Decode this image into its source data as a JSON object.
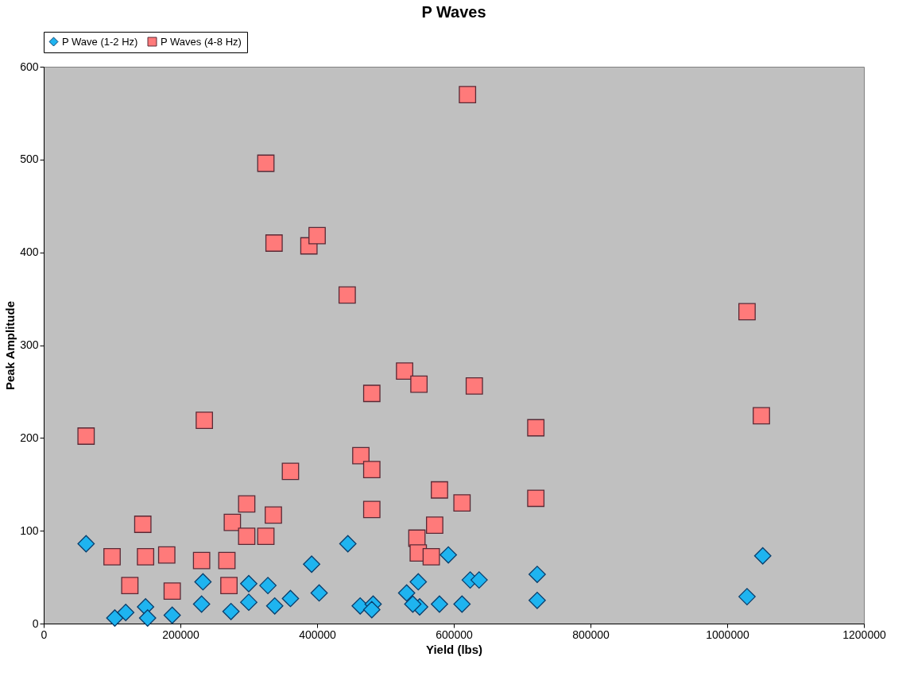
{
  "chart_data": {
    "type": "scatter",
    "title": "P Waves",
    "xlabel": "Yield (lbs)",
    "ylabel": "Peak Amplitude",
    "xlim": [
      0,
      1200000
    ],
    "xticks": [
      0,
      200000,
      400000,
      600000,
      800000,
      1000000,
      1200000
    ],
    "ylim": [
      0,
      600
    ],
    "yticks": [
      0,
      100,
      200,
      300,
      400,
      500,
      600
    ],
    "grid": false,
    "legend": "top",
    "series": [
      {
        "name": "P Wave (1-2 Hz)",
        "color": "#1eb4f0",
        "marker": "diamond",
        "x": [
          62000,
          104000,
          120000,
          149000,
          152000,
          188000,
          233000,
          231000,
          274000,
          300000,
          300000,
          328000,
          338000,
          361000,
          392000,
          403000,
          445000,
          463000,
          482000,
          480000,
          531000,
          548000,
          550000,
          540000,
          579000,
          592000,
          612000,
          624000,
          637000,
          722000,
          722000,
          1029000,
          1052000
        ],
        "values": [
          86,
          6,
          12,
          18,
          6,
          9,
          45,
          21,
          13,
          23,
          43,
          41,
          19,
          27,
          64,
          33,
          86,
          19,
          21,
          15,
          33,
          45,
          18,
          21,
          21,
          74,
          21,
          47,
          47,
          53,
          25,
          29,
          73
        ]
      },
      {
        "name": "P Waves (4-8 Hz)",
        "color": "#ff7a7a",
        "marker": "square",
        "x": [
          62000,
          100000,
          126000,
          145000,
          149000,
          180000,
          188000,
          231000,
          235000,
          268000,
          271000,
          276000,
          297000,
          297000,
          325000,
          325000,
          336000,
          337000,
          361000,
          388000,
          400000,
          444000,
          464000,
          480000,
          480000,
          480000,
          528000,
          546000,
          548000,
          549000,
          567000,
          572000,
          579000,
          612000,
          620000,
          630000,
          720000,
          720000,
          1029000,
          1050000
        ],
        "values": [
          202,
          72,
          41,
          107,
          72,
          74,
          35,
          68,
          219,
          68,
          41,
          109,
          129,
          94,
          94,
          496,
          117,
          410,
          164,
          407,
          418,
          354,
          181,
          166,
          123,
          248,
          272,
          92,
          76,
          258,
          72,
          106,
          144,
          130,
          570,
          256,
          211,
          135,
          336,
          224
        ]
      }
    ]
  }
}
